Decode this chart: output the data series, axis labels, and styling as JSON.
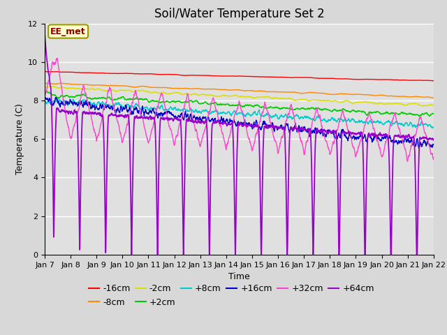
{
  "title": "Soil/Water Temperature Set 2",
  "xlabel": "Time",
  "ylabel": "Temperature (C)",
  "ylim": [
    0,
    12
  ],
  "yticks": [
    0,
    2,
    4,
    6,
    8,
    10,
    12
  ],
  "x_tick_labels": [
    "Jan 7",
    "Jan 8",
    "Jan 9",
    "Jan 10",
    "Jan 11",
    "Jan 12",
    "Jan 13",
    "Jan 14",
    "Jan 15",
    "Jan 16",
    "Jan 17",
    "Jan 18",
    "Jan 19",
    "Jan 20",
    "Jan 21",
    "Jan 22"
  ],
  "series_colors": {
    "-16cm": "#ff0000",
    "-8cm": "#ff8800",
    "-2cm": "#dddd00",
    "+2cm": "#00cc00",
    "+8cm": "#00cccc",
    "+16cm": "#0000cc",
    "+32cm": "#ff44cc",
    "+64cm": "#9900cc"
  },
  "annotation_text": "EE_met",
  "annotation_box_color": "#ffffcc",
  "annotation_border_color": "#999900",
  "background_color": "#d8d8d8",
  "plot_area_color": "#e0e0e0",
  "grid_color": "#ffffff",
  "title_fontsize": 12,
  "axis_label_fontsize": 9,
  "tick_fontsize": 8,
  "legend_fontsize": 9
}
